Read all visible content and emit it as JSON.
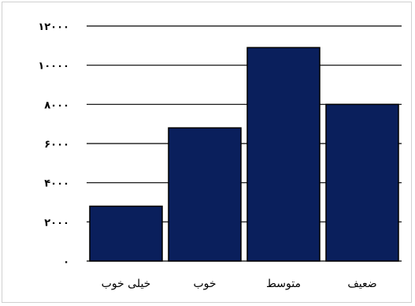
{
  "chart_data": {
    "type": "bar",
    "categories": [
      "خیلی خوب",
      "خوب",
      "متوسط",
      "ضعیف"
    ],
    "values": [
      2800,
      6800,
      10900,
      8000
    ],
    "ylim": [
      0,
      12000
    ],
    "yticks": [
      0,
      2000,
      4000,
      6000,
      8000,
      10000,
      12000
    ],
    "ytick_labels": [
      "۰",
      "۲۰۰۰",
      "۴۰۰۰",
      "۶۰۰۰",
      "۸۰۰۰",
      "۱۰۰۰۰",
      "۱۲۰۰۰"
    ],
    "grid": true,
    "bar_color": "#0a1f5c"
  }
}
